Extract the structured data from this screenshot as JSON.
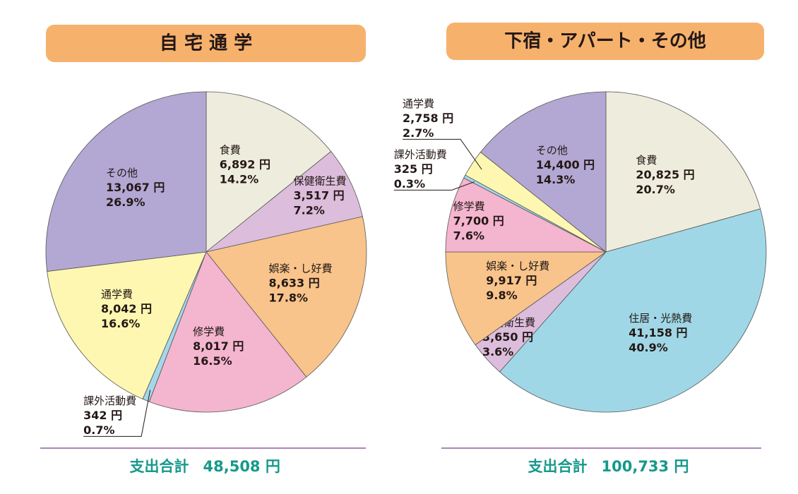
{
  "chart_data": [
    {
      "type": "pie",
      "title": "自 宅 通 学",
      "categories": [
        "食費",
        "保健衛生費",
        "娯楽・し好費",
        "修学費",
        "課外活動費",
        "通学費",
        "その他"
      ],
      "values": [
        6892,
        3517,
        8633,
        8017,
        342,
        8042,
        13067
      ],
      "value_labels": [
        "6,892 円",
        "3,517 円",
        "8,633 円",
        "8,017 円",
        "342 円",
        "8,042 円",
        "13,067 円"
      ],
      "percents": [
        14.2,
        7.2,
        17.8,
        16.5,
        0.7,
        16.6,
        26.9
      ],
      "percent_labels": [
        "14.2%",
        "7.2%",
        "17.8%",
        "16.5%",
        "0.7%",
        "16.6%",
        "26.9%"
      ],
      "colors": [
        "#eeecdc",
        "#dcbddc",
        "#f8c48b",
        "#f4b5cf",
        "#a5d7ea",
        "#fdf7b1",
        "#b3a7d3"
      ],
      "total_caption": "支出合計",
      "total_text": "48,508 円"
    },
    {
      "type": "pie",
      "title": "下宿・アパート・その他",
      "categories": [
        "食費",
        "住居・光熱費",
        "保健衛生費",
        "娯楽・し好費",
        "修学費",
        "課外活動費",
        "通学費",
        "その他"
      ],
      "values": [
        20825,
        41158,
        3650,
        9917,
        7700,
        325,
        2758,
        14400
      ],
      "value_labels": [
        "20,825 円",
        "41,158 円",
        "3,650 円",
        "9,917 円",
        "7,700 円",
        "325 円",
        "2,758 円",
        "14,400 円"
      ],
      "percents": [
        20.7,
        40.9,
        3.6,
        9.8,
        7.6,
        0.3,
        2.7,
        14.3
      ],
      "percent_labels": [
        "20.7%",
        "40.9%",
        "3.6%",
        "9.8%",
        "7.6%",
        "0.3%",
        "2.7%",
        "14.3%"
      ],
      "colors": [
        "#eeecdc",
        "#a0d7e7",
        "#dcbddc",
        "#f8c48b",
        "#f4b5cf",
        "#a5d7ea",
        "#fdf7b1",
        "#b3a7d3"
      ],
      "total_caption": "支出合計",
      "total_text": "100,733 円"
    }
  ]
}
